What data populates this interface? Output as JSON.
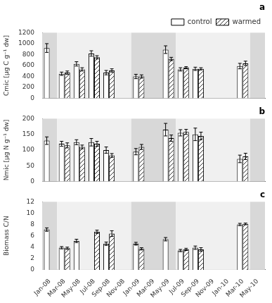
{
  "chart_data": [
    {
      "type": "bar",
      "title": "a",
      "ylabel": "Cmic [μg C g⁻¹ dw]",
      "categories": [
        "Jan-08",
        "Mar-08",
        "May-08",
        "Jul-08",
        "Sep-08",
        "Nov-08",
        "Jan-09",
        "Mar-09",
        "May-09",
        "Jul-09",
        "Sep-09",
        "Nov-09",
        "Jan-10",
        "Mar-10",
        "May-10"
      ],
      "series": [
        {
          "name": "control",
          "color": "#ffffff",
          "values": [
            920,
            450,
            630,
            820,
            470,
            null,
            400,
            null,
            890,
            530,
            540,
            null,
            null,
            590,
            null
          ],
          "errors": [
            80,
            30,
            40,
            50,
            40,
            null,
            40,
            null,
            70,
            30,
            30,
            null,
            null,
            50,
            null
          ]
        },
        {
          "name": "warmed",
          "color": "#ffffff",
          "marker": "hatch",
          "values": [
            null,
            470,
            530,
            750,
            510,
            null,
            400,
            null,
            720,
            560,
            540,
            null,
            null,
            640,
            null
          ],
          "errors": [
            null,
            30,
            30,
            30,
            30,
            null,
            30,
            null,
            30,
            20,
            20,
            null,
            null,
            40,
            null
          ]
        }
      ],
      "bands": [
        {
          "from": "Jan-08",
          "to": "Jan-08",
          "color": "#d8d8d8"
        },
        {
          "from": "Mar-08",
          "to": "Nov-08",
          "color": "#f0f0f0"
        },
        {
          "from": "Jan-09",
          "to": "May-09",
          "color": "#d8d8d8"
        },
        {
          "from": "Jul-09",
          "to": "Mar-10",
          "color": "#f0f0f0"
        },
        {
          "from": "May-10",
          "to": "May-10",
          "color": "#d8d8d8"
        }
      ],
      "ylim": [
        0,
        1200
      ],
      "yticks": [
        0,
        200,
        400,
        600,
        800,
        1000,
        1200
      ],
      "grid": false,
      "legend": "upper right",
      "tick_labels": "y"
    },
    {
      "type": "bar",
      "title": "b",
      "ylabel": "Nmic [μg N g⁻¹ dw]",
      "categories": [
        "Jan-08",
        "Mar-08",
        "May-08",
        "Jul-08",
        "Sep-08",
        "Nov-08",
        "Jan-09",
        "Mar-09",
        "May-09",
        "Jul-09",
        "Sep-09",
        "Nov-09",
        "Jan-10",
        "Mar-10",
        "May-10"
      ],
      "series": [
        {
          "name": "control",
          "color": "#ffffff",
          "values": [
            130,
            120,
            125,
            125,
            100,
            null,
            95,
            null,
            165,
            155,
            150,
            null,
            null,
            72,
            null
          ],
          "errors": [
            12,
            8,
            8,
            12,
            10,
            null,
            10,
            null,
            20,
            10,
            20,
            null,
            null,
            12,
            null
          ]
        },
        {
          "name": "warmed",
          "color": "#ffffff",
          "marker": "hatch",
          "values": [
            null,
            115,
            110,
            120,
            83,
            null,
            110,
            null,
            138,
            158,
            145,
            null,
            null,
            80,
            null
          ],
          "errors": [
            null,
            8,
            6,
            8,
            6,
            null,
            8,
            null,
            10,
            8,
            12,
            null,
            null,
            10,
            null
          ]
        }
      ],
      "bands": [
        {
          "from": "Jan-08",
          "to": "Jan-08",
          "color": "#d8d8d8"
        },
        {
          "from": "Mar-08",
          "to": "Nov-08",
          "color": "#f0f0f0"
        },
        {
          "from": "Jan-09",
          "to": "May-09",
          "color": "#d8d8d8"
        },
        {
          "from": "Jul-09",
          "to": "Mar-10",
          "color": "#f0f0f0"
        },
        {
          "from": "May-10",
          "to": "May-10",
          "color": "#d8d8d8"
        }
      ],
      "ylim": [
        0,
        200
      ],
      "yticks": [
        0,
        50,
        100,
        150,
        200
      ],
      "grid": false,
      "tick_labels": "y"
    },
    {
      "type": "bar",
      "title": "c",
      "ylabel": "Biomass C/N",
      "categories": [
        "Jan-08",
        "Mar-08",
        "May-08",
        "Jul-08",
        "Sep-08",
        "Nov-08",
        "Jan-09",
        "Mar-09",
        "May-09",
        "Jul-09",
        "Sep-09",
        "Nov-09",
        "Jan-10",
        "Mar-10",
        "May-10"
      ],
      "series": [
        {
          "name": "control",
          "color": "#ffffff",
          "values": [
            7.1,
            3.9,
            5.1,
            null,
            4.6,
            null,
            4.6,
            null,
            5.4,
            3.4,
            3.9,
            null,
            null,
            8.0,
            null
          ],
          "errors": [
            0.3,
            0.2,
            0.3,
            null,
            0.3,
            null,
            0.25,
            null,
            0.3,
            0.2,
            0.3,
            null,
            null,
            0.2,
            null
          ]
        },
        {
          "name": "warmed",
          "color": "#ffffff",
          "marker": "hatch",
          "values": [
            null,
            3.8,
            null,
            6.7,
            6.4,
            null,
            3.7,
            null,
            null,
            3.6,
            3.6,
            null,
            null,
            8.1,
            null
          ],
          "errors": [
            null,
            0.2,
            null,
            0.3,
            0.5,
            null,
            0.2,
            null,
            null,
            0.2,
            0.3,
            null,
            null,
            0.15,
            null
          ]
        }
      ],
      "bands": [
        {
          "from": "Jan-08",
          "to": "Jan-08",
          "color": "#d8d8d8"
        },
        {
          "from": "Mar-08",
          "to": "Nov-08",
          "color": "#f0f0f0"
        },
        {
          "from": "Jan-09",
          "to": "May-09",
          "color": "#d8d8d8"
        },
        {
          "from": "Jul-09",
          "to": "Mar-10",
          "color": "#f0f0f0"
        },
        {
          "from": "May-10",
          "to": "May-10",
          "color": "#d8d8d8"
        }
      ],
      "ylim": [
        0,
        12
      ],
      "yticks": [
        0,
        2,
        4,
        6,
        8,
        10,
        12
      ],
      "grid": false
    }
  ]
}
